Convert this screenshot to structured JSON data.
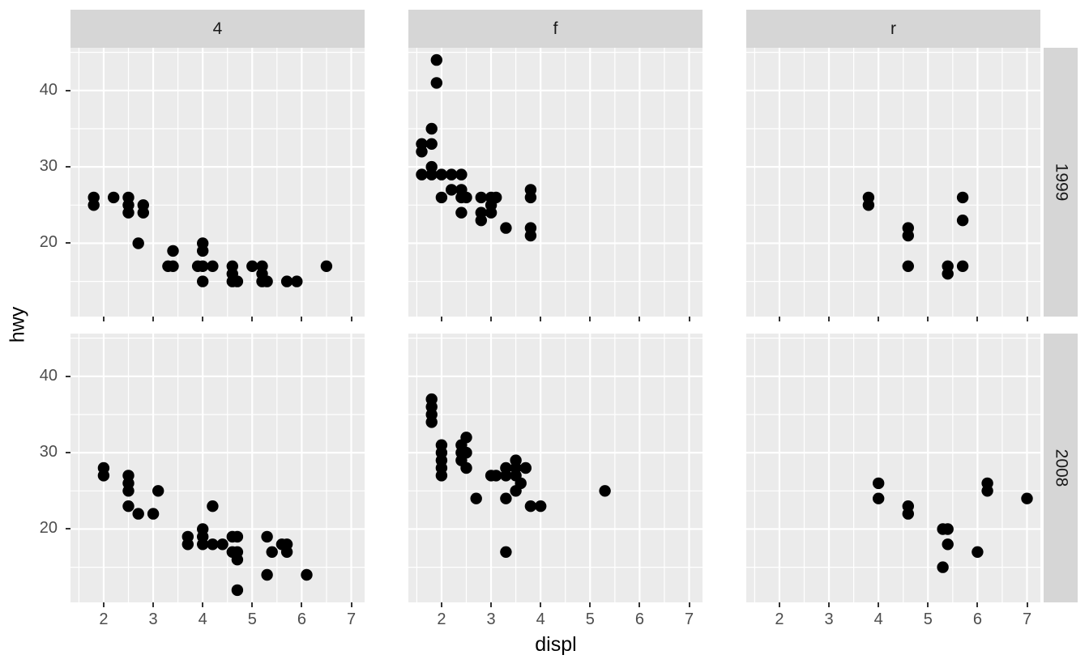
{
  "chart_data": {
    "type": "scatter",
    "title": "",
    "xlabel": "displ",
    "ylabel": "hwy",
    "x_tick_values": [
      2,
      3,
      4,
      5,
      6,
      7
    ],
    "y_tick_values": [
      20,
      30,
      40
    ],
    "x_minor_gridlines": [
      1.5,
      2.5,
      3.5,
      4.5,
      5.5,
      6.5
    ],
    "y_minor_gridlines": [
      15,
      25,
      35,
      45
    ],
    "xlim": [
      1.33,
      7.27
    ],
    "ylim": [
      10.4,
      45.6
    ],
    "grid": "white major and minor gridlines on grey panel",
    "legend_position": "none",
    "facet_col_labels": [
      "4",
      "f",
      "r"
    ],
    "facet_row_labels": [
      "1999",
      "2008"
    ],
    "colors": {
      "point": "#000000",
      "panel_bg": "#ebebeb",
      "strip_bg": "#d6d6d6",
      "gridline": "#ffffff",
      "tick_label": "#4d4d4d",
      "strip_text": "#1a1a1a",
      "axis_title": "#000000",
      "tick_mark": "#333333",
      "background": "#ffffff"
    },
    "panels": [
      {
        "col": "4",
        "row": "1999",
        "points": [
          [
            1.8,
            25
          ],
          [
            1.8,
            26
          ],
          [
            2.2,
            26
          ],
          [
            2.5,
            24
          ],
          [
            2.5,
            25
          ],
          [
            2.5,
            26
          ],
          [
            2.7,
            20
          ],
          [
            2.8,
            24
          ],
          [
            2.8,
            25
          ],
          [
            3.3,
            17
          ],
          [
            3.4,
            17
          ],
          [
            3.4,
            19
          ],
          [
            3.9,
            17
          ],
          [
            4.0,
            15
          ],
          [
            4.0,
            17
          ],
          [
            4.0,
            19
          ],
          [
            4.0,
            20
          ],
          [
            4.2,
            17
          ],
          [
            4.6,
            15
          ],
          [
            4.6,
            16
          ],
          [
            4.6,
            17
          ],
          [
            4.7,
            15
          ],
          [
            5.0,
            17
          ],
          [
            5.2,
            15
          ],
          [
            5.2,
            16
          ],
          [
            5.2,
            17
          ],
          [
            5.3,
            15
          ],
          [
            5.7,
            15
          ],
          [
            5.9,
            15
          ],
          [
            6.5,
            17
          ]
        ]
      },
      {
        "col": "f",
        "row": "1999",
        "points": [
          [
            1.6,
            29
          ],
          [
            1.6,
            32
          ],
          [
            1.6,
            33
          ],
          [
            1.8,
            29
          ],
          [
            1.8,
            30
          ],
          [
            1.8,
            33
          ],
          [
            1.8,
            35
          ],
          [
            1.9,
            41
          ],
          [
            1.9,
            44
          ],
          [
            2.0,
            26
          ],
          [
            2.0,
            29
          ],
          [
            2.2,
            27
          ],
          [
            2.2,
            29
          ],
          [
            2.4,
            24
          ],
          [
            2.4,
            26
          ],
          [
            2.4,
            27
          ],
          [
            2.4,
            29
          ],
          [
            2.5,
            26
          ],
          [
            2.8,
            23
          ],
          [
            2.8,
            24
          ],
          [
            2.8,
            26
          ],
          [
            3.0,
            24
          ],
          [
            3.0,
            25
          ],
          [
            3.0,
            26
          ],
          [
            3.1,
            26
          ],
          [
            3.3,
            22
          ],
          [
            3.8,
            21
          ],
          [
            3.8,
            22
          ],
          [
            3.8,
            26
          ],
          [
            3.8,
            27
          ]
        ]
      },
      {
        "col": "r",
        "row": "1999",
        "points": [
          [
            3.8,
            25
          ],
          [
            3.8,
            26
          ],
          [
            4.6,
            17
          ],
          [
            4.6,
            21
          ],
          [
            4.6,
            22
          ],
          [
            5.4,
            16
          ],
          [
            5.4,
            17
          ],
          [
            5.7,
            17
          ],
          [
            5.7,
            23
          ],
          [
            5.7,
            26
          ]
        ]
      },
      {
        "col": "4",
        "row": "2008",
        "points": [
          [
            2.0,
            27
          ],
          [
            2.0,
            28
          ],
          [
            2.5,
            23
          ],
          [
            2.5,
            25
          ],
          [
            2.5,
            26
          ],
          [
            2.5,
            27
          ],
          [
            2.7,
            22
          ],
          [
            3.0,
            22
          ],
          [
            3.1,
            25
          ],
          [
            3.7,
            18
          ],
          [
            3.7,
            19
          ],
          [
            4.0,
            18
          ],
          [
            4.0,
            19
          ],
          [
            4.0,
            20
          ],
          [
            4.2,
            18
          ],
          [
            4.2,
            23
          ],
          [
            4.4,
            18
          ],
          [
            4.6,
            17
          ],
          [
            4.6,
            19
          ],
          [
            4.7,
            12
          ],
          [
            4.7,
            16
          ],
          [
            4.7,
            17
          ],
          [
            4.7,
            19
          ],
          [
            5.3,
            14
          ],
          [
            5.3,
            19
          ],
          [
            5.4,
            17
          ],
          [
            5.6,
            18
          ],
          [
            5.7,
            17
          ],
          [
            5.7,
            18
          ],
          [
            6.1,
            14
          ]
        ]
      },
      {
        "col": "f",
        "row": "2008",
        "points": [
          [
            1.8,
            34
          ],
          [
            1.8,
            35
          ],
          [
            1.8,
            36
          ],
          [
            1.8,
            37
          ],
          [
            2.0,
            27
          ],
          [
            2.0,
            28
          ],
          [
            2.0,
            29
          ],
          [
            2.0,
            30
          ],
          [
            2.0,
            31
          ],
          [
            2.4,
            29
          ],
          [
            2.4,
            30
          ],
          [
            2.4,
            31
          ],
          [
            2.5,
            28
          ],
          [
            2.5,
            30
          ],
          [
            2.5,
            32
          ],
          [
            2.7,
            24
          ],
          [
            3.0,
            27
          ],
          [
            3.1,
            27
          ],
          [
            3.3,
            17
          ],
          [
            3.3,
            24
          ],
          [
            3.3,
            27
          ],
          [
            3.3,
            28
          ],
          [
            3.5,
            25
          ],
          [
            3.5,
            27
          ],
          [
            3.5,
            28
          ],
          [
            3.5,
            29
          ],
          [
            3.6,
            26
          ],
          [
            3.7,
            28
          ],
          [
            3.8,
            23
          ],
          [
            4.0,
            23
          ],
          [
            5.3,
            25
          ]
        ]
      },
      {
        "col": "r",
        "row": "2008",
        "points": [
          [
            4.0,
            24
          ],
          [
            4.0,
            26
          ],
          [
            4.6,
            22
          ],
          [
            4.6,
            23
          ],
          [
            5.3,
            15
          ],
          [
            5.3,
            20
          ],
          [
            5.4,
            18
          ],
          [
            5.4,
            20
          ],
          [
            6.0,
            17
          ],
          [
            6.2,
            25
          ],
          [
            6.2,
            26
          ],
          [
            7.0,
            24
          ]
        ]
      }
    ]
  }
}
